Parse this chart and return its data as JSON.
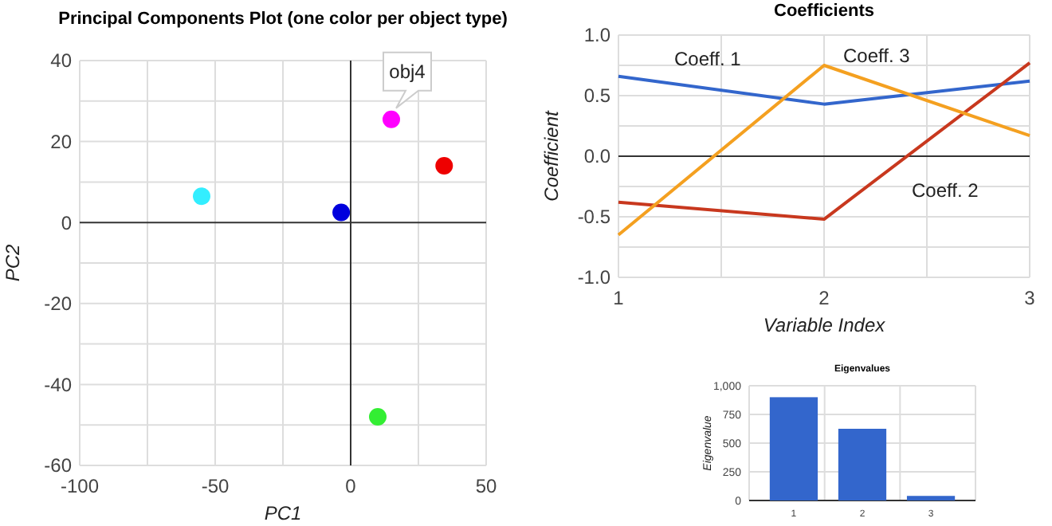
{
  "chart_data": [
    {
      "type": "scatter",
      "title": "Principal Components Plot (one color per object type)",
      "xlabel": "PC1",
      "ylabel": "PC2",
      "x": [
        -55,
        -3.5,
        15,
        34.5,
        10
      ],
      "values": [
        6.5,
        2.5,
        25.5,
        14,
        -48
      ],
      "colors": [
        "#33eeff",
        "#0000dd",
        "#ff00ff",
        "#ee0000",
        "#33ee33"
      ],
      "marker": "circle",
      "xlim": [
        -100,
        50
      ],
      "ylim": [
        -60,
        40
      ],
      "xticks": [
        -100,
        {
          "value": -75,
          "label": null
        },
        -50,
        {
          "value": -25,
          "label": null
        },
        0,
        {
          "value": 25,
          "label": null
        },
        50
      ],
      "yticks": [
        -60,
        {
          "value": -50,
          "label": null
        },
        -40,
        {
          "value": -30,
          "label": null
        },
        -20,
        {
          "value": -10,
          "label": null
        },
        0,
        {
          "value": 10,
          "label": null
        },
        20,
        {
          "value": 30,
          "label": null
        },
        40
      ],
      "grid": true,
      "annotations": [
        {
          "text": "obj4",
          "x": 15,
          "y": 25.5
        }
      ]
    },
    {
      "type": "line",
      "title": "Coefficients",
      "xlabel": "Variable Index",
      "ylabel": "Coefficient",
      "x": [
        1,
        2,
        3
      ],
      "series": [
        {
          "name": "Coeff. 1",
          "color": "#3366cc",
          "values": [
            0.66,
            0.43,
            0.62
          ]
        },
        {
          "name": "Coeff. 2",
          "color": "#c8381e",
          "values": [
            -0.38,
            -0.52,
            0.77
          ]
        },
        {
          "name": "Coeff. 3",
          "color": "#f4a020",
          "values": [
            -0.65,
            0.75,
            0.17
          ]
        }
      ],
      "xlim": [
        1,
        3
      ],
      "ylim": [
        -1,
        1
      ],
      "xticks": [
        1,
        {
          "value": 1.5,
          "label": null
        },
        2,
        {
          "value": 2.5,
          "label": null
        },
        3
      ],
      "yticks": [
        {
          "value": -1,
          "label": "-1.0"
        },
        {
          "value": -0.75,
          "label": null
        },
        {
          "value": -0.5,
          "label": "-0.5"
        },
        {
          "value": -0.25,
          "label": null
        },
        {
          "value": 0,
          "label": "0.0"
        },
        {
          "value": 0.25,
          "label": null
        },
        {
          "value": 0.5,
          "label": "0.5"
        },
        {
          "value": 0.75,
          "label": null
        },
        {
          "value": 1,
          "label": "1.0"
        }
      ],
      "grid": true,
      "marker": "none",
      "line_style": "solid"
    },
    {
      "type": "bar",
      "title": "Eigenvalues",
      "ylabel": "Eigenvalue",
      "categories": [
        "1",
        "2",
        "3"
      ],
      "values": [
        900,
        625,
        40
      ],
      "color": "#3366cc",
      "ylim": [
        0,
        1000
      ],
      "yticks": [
        0,
        250,
        500,
        750,
        {
          "value": 1000,
          "label": "1,000"
        }
      ],
      "grid": true
    }
  ]
}
